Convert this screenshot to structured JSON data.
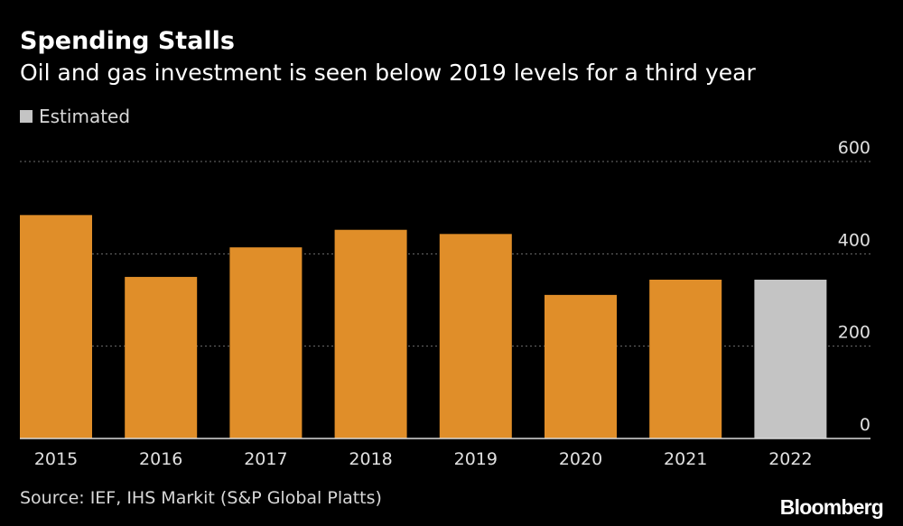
{
  "chart_data": {
    "type": "bar",
    "title": "Spending Stalls",
    "subtitle": "Oil and gas investment is seen below 2019 levels for a third year",
    "categories": [
      "2015",
      "2016",
      "2017",
      "2018",
      "2019",
      "2020",
      "2021",
      "2022"
    ],
    "values": [
      484,
      350,
      414,
      452,
      443,
      311,
      344,
      344
    ],
    "estimated": [
      false,
      false,
      false,
      false,
      false,
      false,
      false,
      true
    ],
    "ylim": [
      0,
      600
    ],
    "yticks": [
      0,
      200,
      400,
      600
    ],
    "xlabel": "",
    "ylabel": "",
    "grid": true,
    "legend": {
      "position": "top-left",
      "entries": [
        {
          "label": "Estimated",
          "color": "#c4c4c4"
        }
      ]
    },
    "colors": {
      "actual": "#e08e29",
      "estimated": "#c4c4c4",
      "grid": "#6e6e6e",
      "baseline": "#d9d9d9",
      "tick_text": "#e0e0e0"
    }
  },
  "source": "Source: IEF, IHS Markit (S&P Global Platts)",
  "brand": "Bloomberg"
}
